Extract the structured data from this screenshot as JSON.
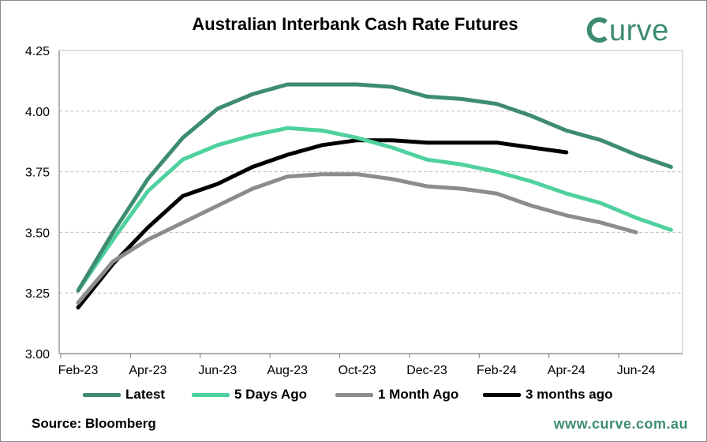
{
  "title": "Australian Interbank Cash Rate Futures",
  "brand": {
    "name": "Curve",
    "color": "#3d8c72"
  },
  "source_label": "Source: Bloomberg",
  "url": "www.curve.com.au",
  "chart_data": {
    "type": "line",
    "title": "Australian Interbank Cash Rate Futures",
    "xlabel": "",
    "ylabel": "",
    "x_ticks": [
      "Feb-23",
      "Apr-23",
      "Jun-23",
      "Aug-23",
      "Oct-23",
      "Dec-23",
      "Feb-24",
      "Apr-24",
      "Jun-24"
    ],
    "y_ticks": [
      "3.00",
      "3.25",
      "3.50",
      "3.75",
      "4.00",
      "4.25"
    ],
    "ylim": [
      3.0,
      4.25
    ],
    "xlim": [
      0,
      18
    ],
    "grid": "horizontal-dashed",
    "legend_position": "bottom",
    "series": [
      {
        "name": "Latest",
        "color": "#3d8c72",
        "x": [
          0,
          1,
          2,
          3,
          4,
          5,
          6,
          7,
          8,
          9,
          10,
          11,
          12,
          13,
          14,
          15,
          16,
          17,
          18
        ],
        "values": [
          3.26,
          3.5,
          3.72,
          3.89,
          4.01,
          4.07,
          4.11,
          4.11,
          4.11,
          4.1,
          4.06,
          4.05,
          4.03,
          3.98,
          3.92,
          3.88,
          3.82,
          3.77,
          null
        ]
      },
      {
        "name": "5 Days Ago",
        "color": "#4fd19e",
        "x": [
          0,
          1,
          2,
          3,
          4,
          5,
          6,
          7,
          8,
          9,
          10,
          11,
          12,
          13,
          14,
          15,
          16,
          17,
          18
        ],
        "values": [
          3.26,
          3.47,
          3.67,
          3.8,
          3.86,
          3.9,
          3.93,
          3.92,
          3.89,
          3.85,
          3.8,
          3.78,
          3.75,
          3.71,
          3.66,
          3.62,
          3.56,
          3.51,
          null
        ]
      },
      {
        "name": "1 Month Ago",
        "color": "#8c8c8c",
        "x": [
          0,
          1,
          2,
          3,
          4,
          5,
          6,
          7,
          8,
          9,
          10,
          11,
          12,
          13,
          14,
          15,
          16
        ],
        "values": [
          3.21,
          3.38,
          3.47,
          3.54,
          3.61,
          3.68,
          3.73,
          3.74,
          3.74,
          3.72,
          3.69,
          3.68,
          3.66,
          3.61,
          3.57,
          3.54,
          3.5
        ]
      },
      {
        "name": "3 months ago",
        "color": "#000000",
        "x": [
          0,
          1,
          2,
          3,
          4,
          5,
          6,
          7,
          8,
          9,
          10,
          11,
          12,
          13,
          14
        ],
        "values": [
          3.19,
          3.37,
          3.52,
          3.65,
          3.7,
          3.77,
          3.82,
          3.86,
          3.88,
          3.88,
          3.87,
          3.87,
          3.87,
          3.85,
          3.83
        ]
      }
    ]
  }
}
